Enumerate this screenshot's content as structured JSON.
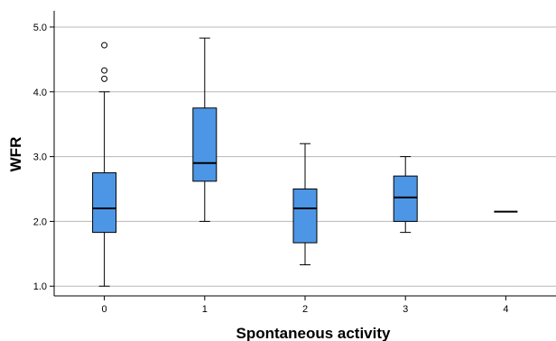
{
  "chart_data": {
    "type": "boxplot",
    "xlabel": "Spontaneous activity",
    "ylabel": "WFR",
    "ylim": [
      0.85,
      5.25
    ],
    "yticks": [
      1.0,
      2.0,
      3.0,
      4.0,
      5.0
    ],
    "ytick_labels": [
      "1.0",
      "2.0",
      "3.0",
      "4.0",
      "5.0"
    ],
    "grid": "horizontal",
    "box_color": "#4d96e6",
    "categories": [
      "0",
      "1",
      "2",
      "3",
      "4"
    ],
    "boxes": [
      {
        "min": 1.0,
        "q1": 1.83,
        "median": 2.2,
        "q3": 2.75,
        "max": 4.0,
        "outliers": [
          4.2,
          4.33,
          4.72
        ]
      },
      {
        "min": 2.0,
        "q1": 2.62,
        "median": 2.9,
        "q3": 3.75,
        "max": 4.83,
        "outliers": []
      },
      {
        "min": 1.33,
        "q1": 1.67,
        "median": 2.2,
        "q3": 2.5,
        "max": 3.2,
        "outliers": []
      },
      {
        "min": 1.83,
        "q1": 2.0,
        "median": 2.37,
        "q3": 2.7,
        "max": 3.0,
        "outliers": []
      },
      {
        "min": 2.15,
        "q1": 2.15,
        "median": 2.15,
        "q3": 2.15,
        "max": 2.15,
        "outliers": []
      }
    ]
  }
}
